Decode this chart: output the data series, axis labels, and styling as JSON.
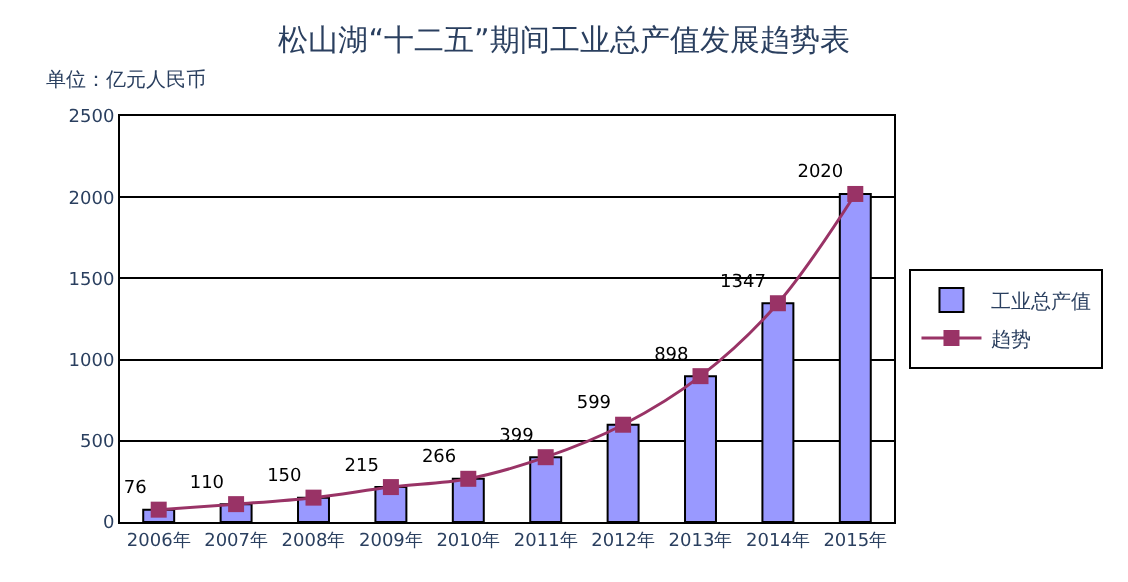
{
  "chart_data": {
    "type": "bar",
    "title": "松山湖“十二五”期间工业总产值发展趋势表",
    "annotations": [
      "单位：亿元人民币"
    ],
    "categories": [
      "2006年",
      "2007年",
      "2008年",
      "2009年",
      "2010年",
      "2011年",
      "2012年",
      "2013年",
      "2014年",
      "2015年"
    ],
    "series": [
      {
        "name": "工业总产值",
        "color": "#9999ff",
        "values": [
          76,
          110,
          150,
          215,
          266,
          399,
          599,
          898,
          1347,
          2020
        ]
      },
      {
        "name": "趋势",
        "type": "line",
        "color": "#993366",
        "marker": "square",
        "values": [
          76,
          110,
          150,
          215,
          266,
          399,
          599,
          898,
          1347,
          2020
        ],
        "value_labels": [
          "76",
          "110",
          "150",
          "215",
          "266",
          "399",
          "599",
          "898",
          "1347",
          "2020"
        ]
      }
    ],
    "ylim": [
      0,
      2500
    ],
    "yticks": [
      0,
      500,
      1000,
      1500,
      2000,
      2500
    ],
    "grid": "y",
    "legend": "right"
  }
}
